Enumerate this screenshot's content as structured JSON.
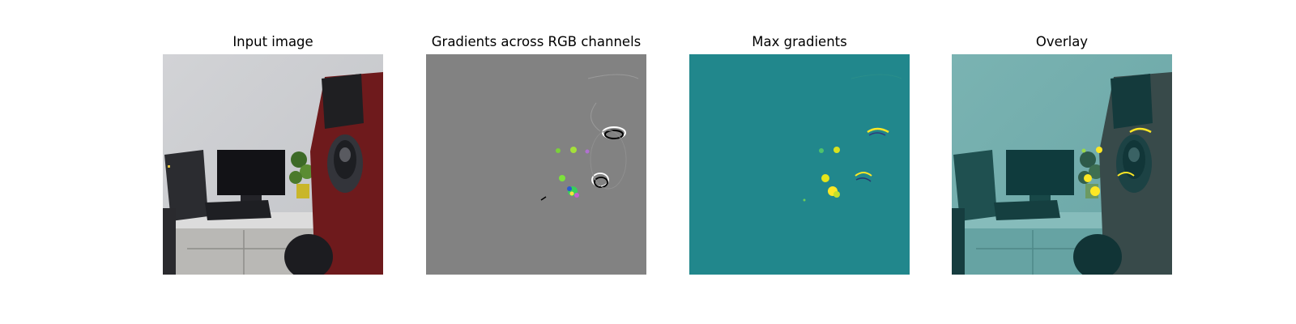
{
  "figure": {
    "panels": [
      {
        "title": "Input image",
        "content": "photo of an office desk with a computer, monitor, keyboard, potted plant and a red robot arm"
      },
      {
        "title": "Gradients across RGB channels",
        "content": "gray saliency map with sparse colored and black/white gradient marks"
      },
      {
        "title": "Max gradients",
        "content": "teal heatmap with yellow/green hot spots"
      },
      {
        "title": "Overlay",
        "content": "input photo tinted teal with yellow hot spots overlaid"
      }
    ],
    "colors": {
      "gradient_background": "#828282",
      "max_gradient_background": "#21878c",
      "hotspot": "#fde725",
      "robot_red": "#7a1b1e"
    }
  }
}
